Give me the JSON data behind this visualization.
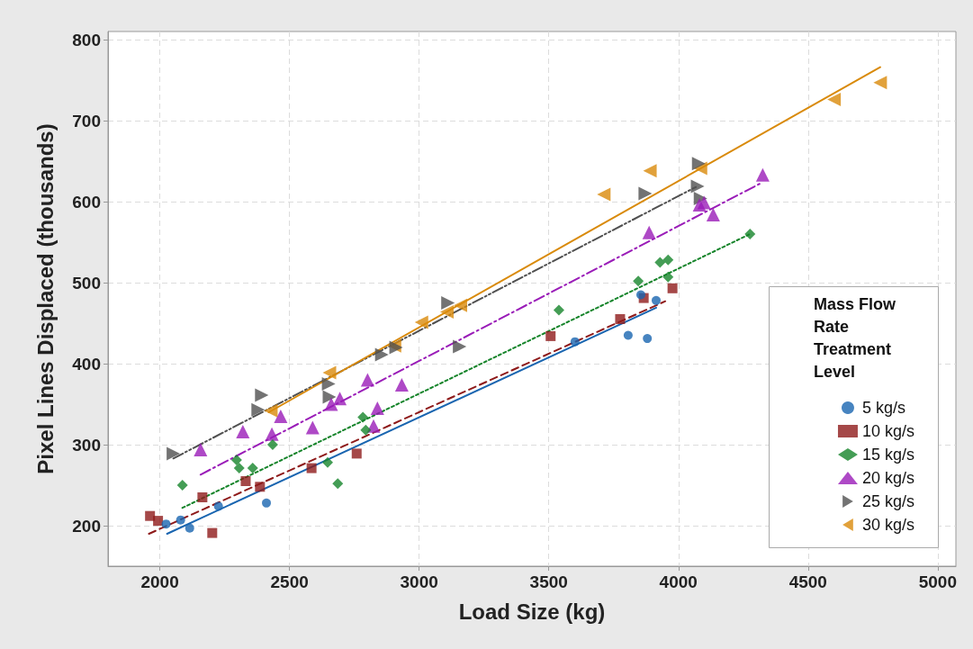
{
  "chart_data": {
    "type": "scatter",
    "xlabel": "Load Size (kg)",
    "ylabel": "Pixel Lines Displaced (thousands)",
    "legend_title": "Mass Flow Rate Treatment Level",
    "legend": "bottom right",
    "grid": true,
    "xlim": [
      1800,
      5070
    ],
    "xticks": [
      2000,
      2500,
      3000,
      3500,
      4000,
      4500,
      5000
    ],
    "ylim": [
      150,
      810
    ],
    "yticks": [
      200,
      300,
      400,
      500,
      600,
      700,
      800
    ],
    "series": [
      {
        "name": "5 kg/s",
        "color": "#1965b0",
        "marker": "circle",
        "x": [
          2024,
          2080,
          2115,
          2226,
          2411,
          3601,
          3806,
          3880,
          3855,
          3914
        ],
        "values": [
          202,
          207,
          197,
          224,
          228,
          427,
          435,
          431,
          485,
          478
        ]
      },
      {
        "name": "10 kg/s",
        "color": "#8e1a1a",
        "marker": "square",
        "x": [
          1962,
          1993,
          2164,
          2331,
          2386,
          2202,
          2585,
          2759,
          3507,
          3775,
          3866,
          3977
        ],
        "values": [
          212,
          206,
          235,
          255,
          248,
          191,
          271,
          289,
          434,
          455,
          481,
          493
        ]
      },
      {
        "name": "15 kg/s",
        "color": "#15842a",
        "marker": "diamond",
        "x": [
          2087,
          2296,
          2306,
          2358,
          2435,
          2686,
          2647,
          2783,
          2794,
          3539,
          3845,
          3929,
          3960,
          3960,
          4276
        ],
        "values": [
          250,
          281,
          271,
          271,
          300,
          252,
          278,
          334,
          318,
          466,
          502,
          525,
          528,
          507,
          560
        ]
      },
      {
        "name": "20 kg/s",
        "color": "#9a1cb8",
        "marker": "triangle",
        "x": [
          2157,
          2320,
          2432,
          2466,
          2589,
          2661,
          2694,
          2801,
          2933,
          2839,
          2824,
          3887,
          4081,
          4099,
          4134,
          4325
        ],
        "values": [
          294,
          316,
          313,
          335,
          321,
          350,
          357,
          380,
          374,
          345,
          323,
          562,
          596,
          599,
          584,
          633
        ]
      },
      {
        "name": "25 kg/s",
        "color": "#505050",
        "marker": "triangle-right",
        "x": [
          2052,
          2393,
          2379,
          2651,
          2654,
          2856,
          2911,
          3111,
          3156,
          3872,
          4078,
          4074,
          4085
        ],
        "values": [
          289,
          361,
          343,
          375,
          359,
          411,
          420,
          475,
          421,
          610,
          647,
          619,
          604
        ]
      },
      {
        "name": "30 kg/s",
        "color": "#d98a0a",
        "marker": "triangle-left",
        "x": [
          2428,
          2654,
          2905,
          3009,
          3107,
          3159,
          3712,
          3890,
          4085,
          4600,
          4778
        ],
        "values": [
          342,
          389,
          422,
          451,
          464,
          472,
          609,
          638,
          641,
          726,
          747
        ]
      },
      {
        "type": "line",
        "color": "#1965b0",
        "line_style": "solid",
        "x": [
          2028,
          3914
        ],
        "values": [
          190,
          469
        ]
      },
      {
        "type": "line",
        "color": "#8e1a1a",
        "line_style": "dashed",
        "x": [
          1958,
          3949
        ],
        "values": [
          190,
          477
        ]
      },
      {
        "type": "line",
        "color": "#15842a",
        "line_style": "dotted",
        "x": [
          2087,
          4276
        ],
        "values": [
          222,
          560
        ]
      },
      {
        "type": "line",
        "color": "#9a1cb8",
        "line_style": "dashdot",
        "x": [
          2157,
          4325
        ],
        "values": [
          263,
          624
        ]
      },
      {
        "type": "line",
        "color": "#505050",
        "line_style": "dashdotdot",
        "x": [
          2052,
          4067
        ],
        "values": [
          283,
          618
        ]
      },
      {
        "type": "line",
        "color": "#d98a0a",
        "line_style": "solid",
        "x": [
          2420,
          4778
        ],
        "values": [
          340,
          766
        ]
      }
    ]
  }
}
